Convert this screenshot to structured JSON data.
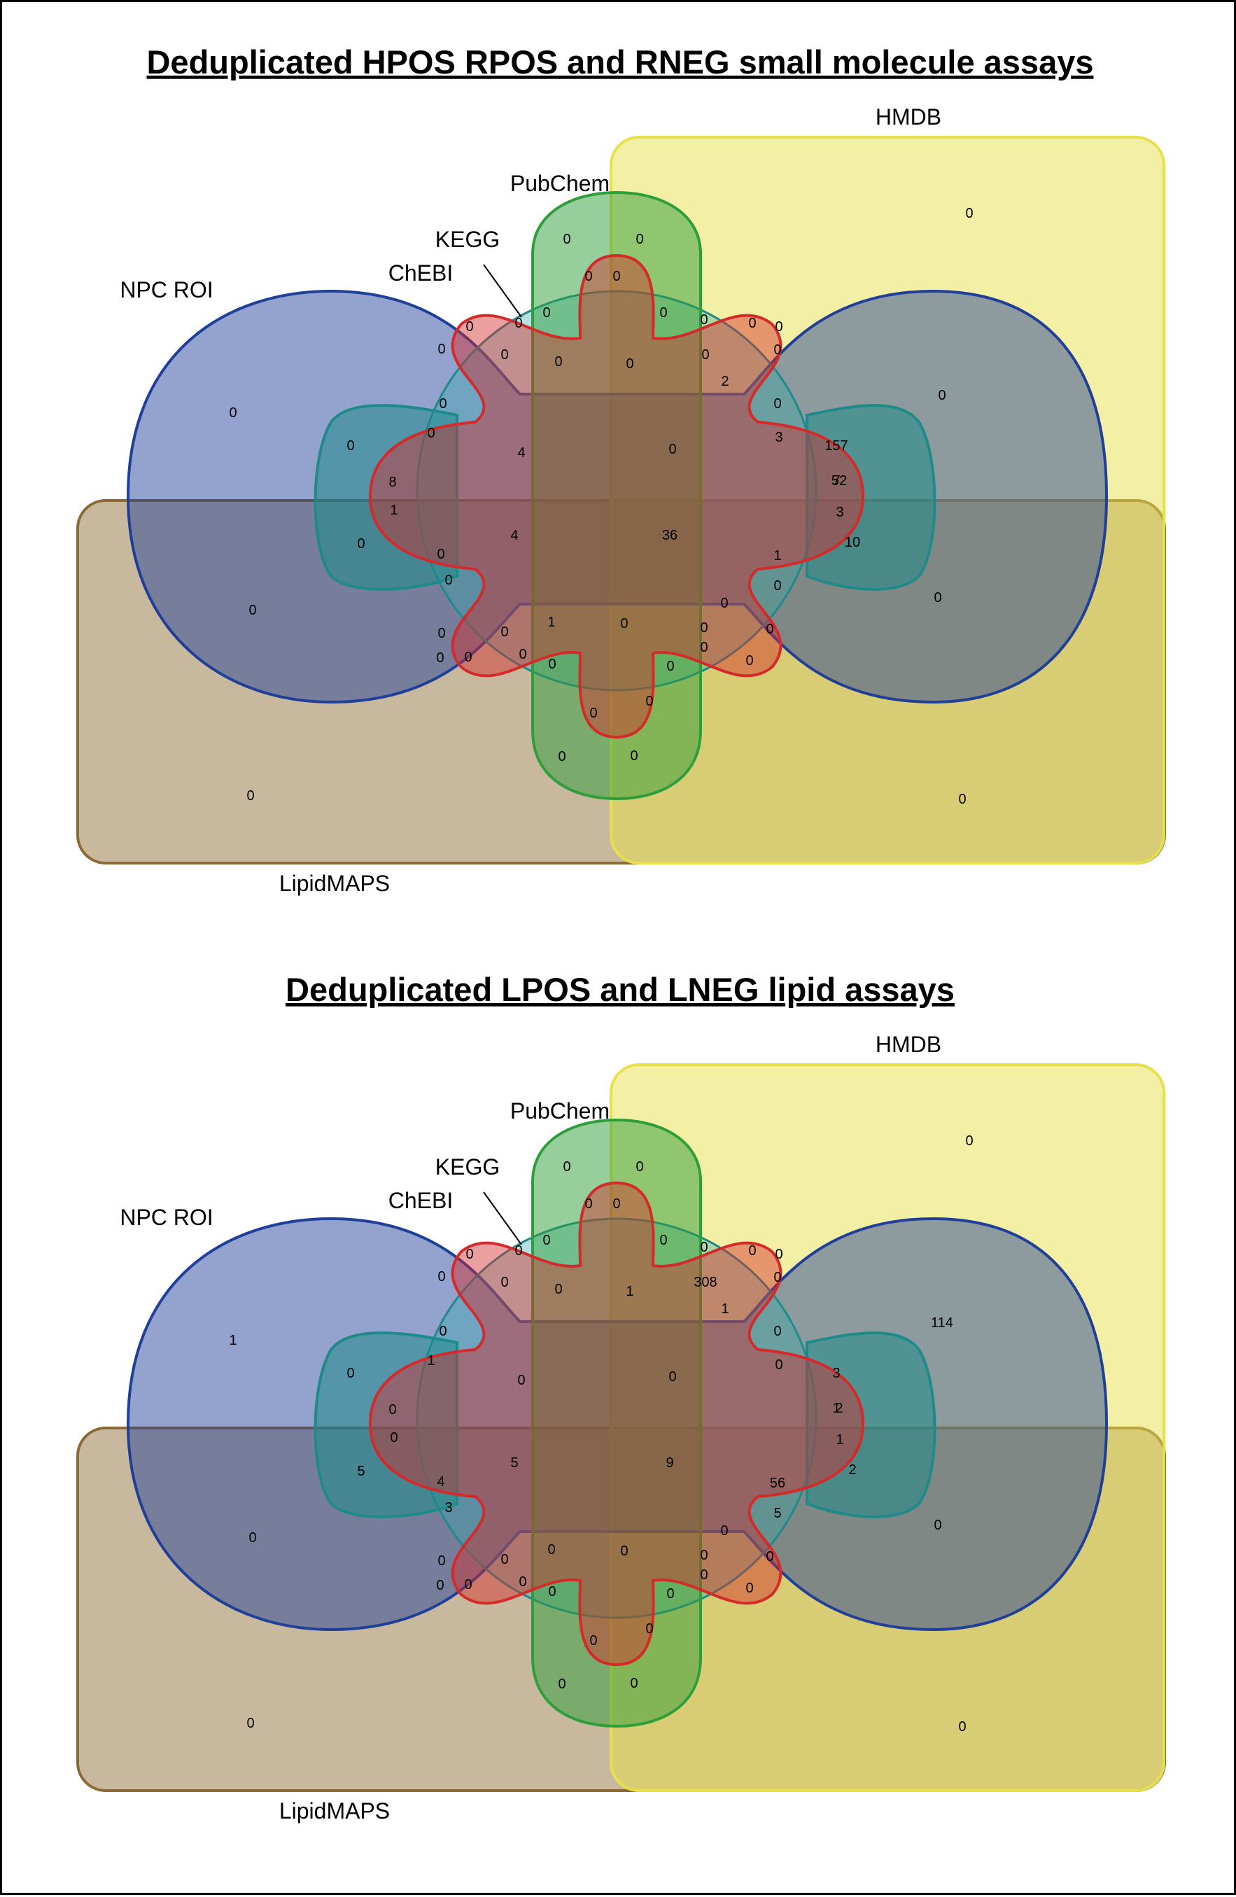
{
  "colors": {
    "lipidmaps": "#8B6A35",
    "hmdb": "#E8E04A",
    "npc_roi": "#1F3F99",
    "chebi": "#1F8A8A",
    "kegg": "#2AA8A8",
    "pubchem": "#2E9E3A",
    "red_set": "#D42A2A"
  },
  "panels": [
    {
      "title": "Deduplicated HPOS RPOS and RNEG small molecule assays",
      "labels": {
        "hmdb": "HMDB",
        "pubchem": "PubChem",
        "kegg": "KEGG",
        "chebi": "ChEBI",
        "npc_roi": "NPC ROI",
        "lipidmaps": "LipidMAPS"
      },
      "counts": [
        "0",
        "0",
        "0",
        "0",
        "0",
        "0",
        "0",
        "0",
        "0",
        "0",
        "0",
        "0",
        "0",
        "0",
        "0",
        "0",
        "0",
        "0",
        "2",
        "0",
        "0",
        "0",
        "0",
        "0",
        "0",
        "4",
        "0",
        "3",
        "157",
        "7",
        "8",
        "1",
        "52",
        "3",
        "10",
        "0",
        "4",
        "36",
        "1",
        "0",
        "0",
        "0",
        "0",
        "0",
        "0",
        "1",
        "0",
        "0",
        "0",
        "0",
        "0",
        "0",
        "0",
        "0",
        "0",
        "0",
        "0",
        "0",
        "0",
        "0",
        "0",
        "0",
        "0",
        "0"
      ]
    },
    {
      "title": "Deduplicated LPOS and LNEG lipid assays",
      "labels": {
        "hmdb": "HMDB",
        "pubchem": "PubChem",
        "kegg": "KEGG",
        "chebi": "ChEBI",
        "npc_roi": "NPC ROI",
        "lipidmaps": "LipidMAPS"
      },
      "counts": [
        "0",
        "0",
        "0",
        "0",
        "0",
        "0",
        "0",
        "0",
        "0",
        "0",
        "0",
        "0",
        "0",
        "0",
        "0",
        "1",
        "308",
        "0",
        "1",
        "1",
        "114",
        "0",
        "0",
        "1",
        "0",
        "0",
        "0",
        "0",
        "3",
        "1",
        "0",
        "0",
        "2",
        "1",
        "2",
        "5",
        "5",
        "9",
        "56",
        "4",
        "3",
        "5",
        "0",
        "0",
        "0",
        "0",
        "0",
        "0",
        "0",
        "0",
        "0",
        "0",
        "0",
        "0",
        "0",
        "0",
        "0",
        "0",
        "0",
        "0",
        "0",
        "0",
        "0",
        "0"
      ]
    }
  ]
}
